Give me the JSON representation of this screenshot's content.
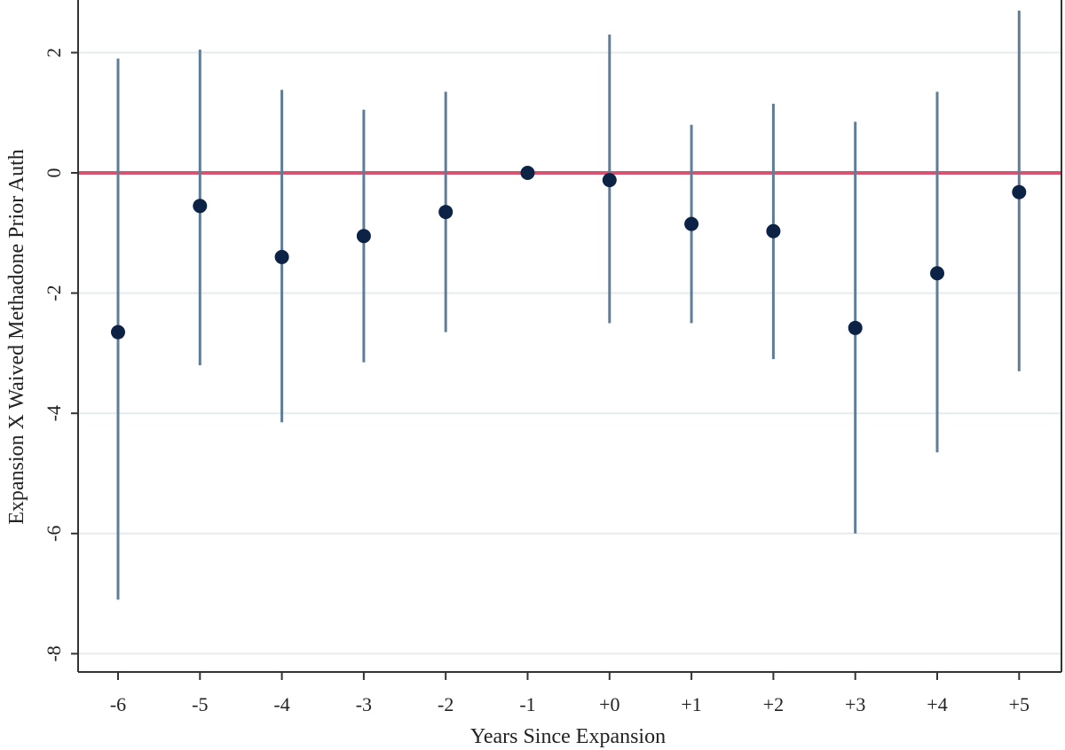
{
  "chart_data": {
    "type": "scatter",
    "title": "",
    "xlabel": "Years Since Expansion",
    "ylabel": "Expansion X Waived Methadone Prior Auth",
    "categories": [
      "-6",
      "-5",
      "-4",
      "-3",
      "-2",
      "-1",
      "+0",
      "+1",
      "+2",
      "+3",
      "+4",
      "+5"
    ],
    "series": [
      {
        "estimate": [
          -2.65,
          -0.55,
          -1.4,
          -1.05,
          -0.65,
          0.0,
          -0.12,
          -0.85,
          -0.97,
          -2.58,
          -1.67,
          -0.32
        ],
        "ci_low": [
          -7.1,
          -3.2,
          -4.15,
          -3.15,
          -2.65,
          0.0,
          -2.5,
          -2.5,
          -3.1,
          -6.0,
          -4.65,
          -3.3
        ],
        "ci_high": [
          1.9,
          2.05,
          1.38,
          1.05,
          1.35,
          0.0,
          2.3,
          0.8,
          1.15,
          0.85,
          1.35,
          2.7
        ]
      }
    ],
    "ylim": [
      -8.3,
      2.9
    ],
    "yticks": [
      -8,
      -6,
      -4,
      -2,
      0,
      2
    ],
    "ytick_labels": [
      "-8",
      "-6",
      "-4",
      "-2",
      "0",
      "2"
    ],
    "reference_line": 0,
    "grid": true,
    "colors": {
      "marker": "#0d2346",
      "ci": "#5f7d99",
      "reference": "#d8536f",
      "grid": "#e6ecee",
      "axis": "#333333"
    }
  }
}
